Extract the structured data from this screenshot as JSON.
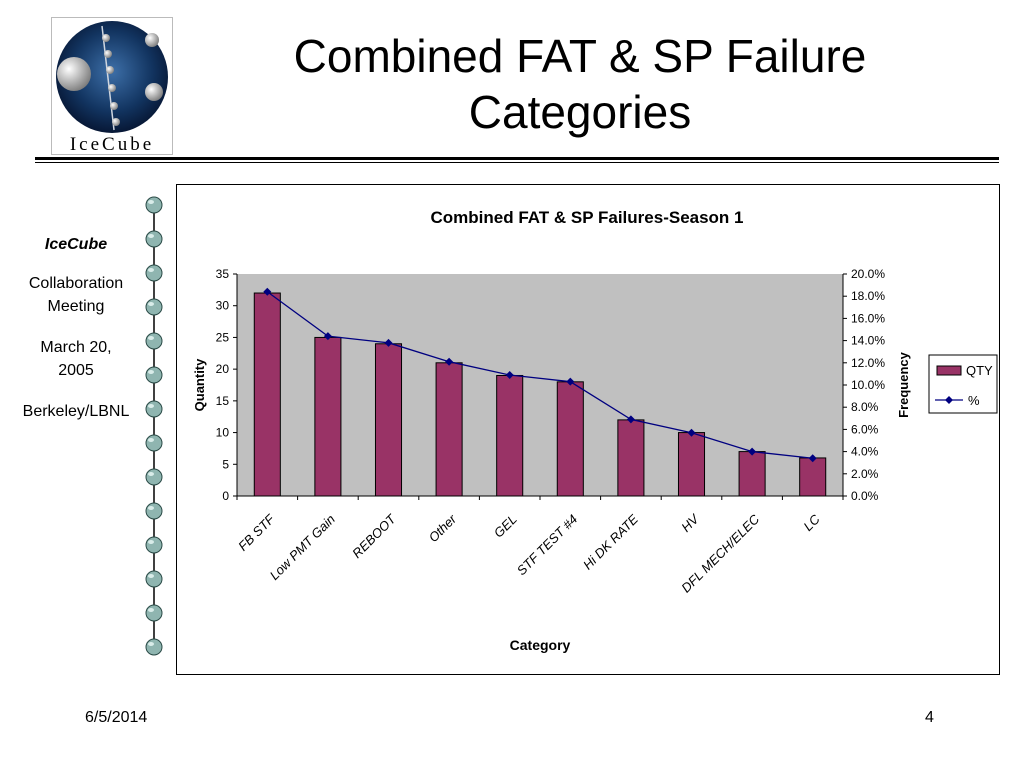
{
  "slide": {
    "title_line1": "Combined FAT & SP Failure",
    "title_line2": "Categories",
    "logo_text": "IceCube"
  },
  "sidebar": {
    "org": "IceCube",
    "event_line1": "Collaboration",
    "event_line2": "Meeting",
    "date_line1": "March 20,",
    "date_line2": "2005",
    "location": "Berkeley/LBNL"
  },
  "footer": {
    "date": "6/5/2014",
    "page": "4"
  },
  "colors": {
    "bar": "#993366",
    "line": "#000080",
    "plot_bg": "#c0c0c0"
  },
  "chart_data": {
    "type": "bar",
    "title": "Combined FAT & SP Failures-Season 1",
    "xlabel": "Category",
    "ylabel": "Quantity",
    "y2label": "Frequency",
    "categories": [
      "FB STF",
      "Low PMT Gain",
      "REBOOT",
      "Other",
      "GEL",
      "STF TEST #4",
      "Hi DK RATE",
      "HV",
      "DFL MECH/ELEC",
      "LC"
    ],
    "series": [
      {
        "name": "QTY",
        "type": "bar",
        "axis": "left",
        "values": [
          32,
          25,
          24,
          21,
          19,
          18,
          12,
          10,
          7,
          6
        ]
      },
      {
        "name": "%",
        "type": "line",
        "axis": "right",
        "values": [
          18.4,
          14.4,
          13.8,
          12.1,
          10.9,
          10.3,
          6.9,
          5.7,
          4.0,
          3.4
        ]
      }
    ],
    "ylim": [
      0,
      35
    ],
    "y2lim": [
      0,
      20
    ],
    "yticks": [
      "0",
      "5",
      "10",
      "15",
      "20",
      "25",
      "30",
      "35"
    ],
    "y2ticks": [
      "0.0%",
      "2.0%",
      "4.0%",
      "6.0%",
      "8.0%",
      "10.0%",
      "12.0%",
      "14.0%",
      "16.0%",
      "18.0%",
      "20.0%"
    ],
    "legend": "right",
    "grid": false
  }
}
